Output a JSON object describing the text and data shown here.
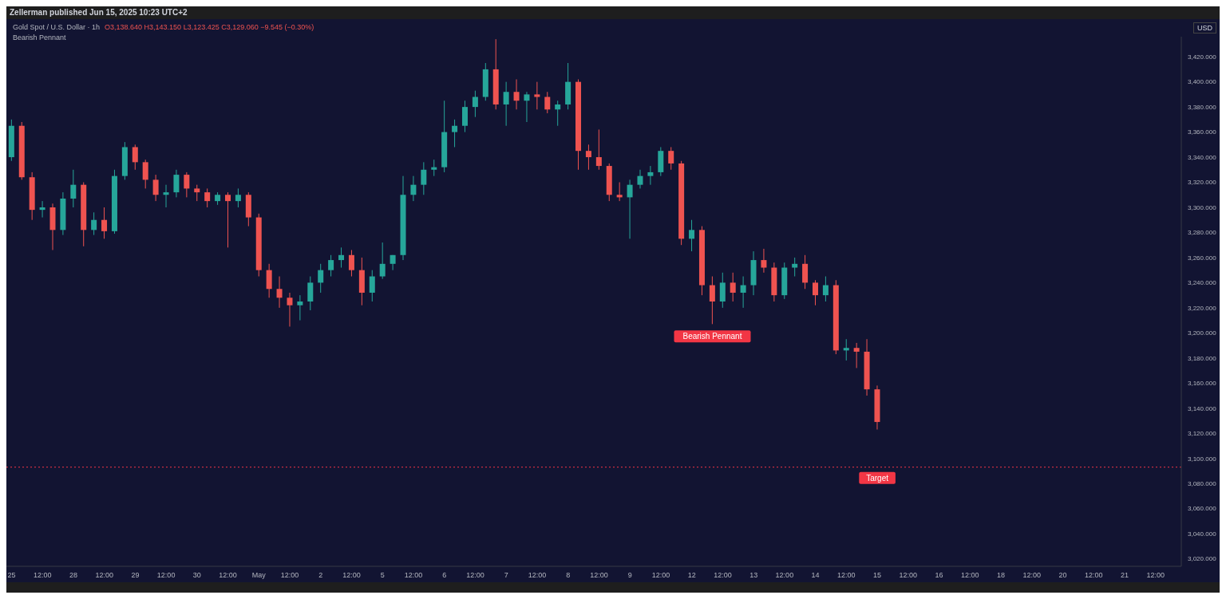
{
  "chart_data": {
    "type": "candlestick",
    "title": "Gold Spot / U.S. Dollar · 1h",
    "subtitle": "O3,138.640 H3,143.150 L3,123.425 C3,129.060 −9.545 (−0.30%)",
    "ylabel": "USD",
    "annotations": [
      "Zellerman published Jun 15, 2025 10:23 UTC+2",
      "Bearish Pennant",
      {
        "text": "Bearish Pennant",
        "y": 3207
      }
    ],
    "categories": [
      "25",
      null,
      null,
      "12:00",
      null,
      null,
      "28",
      null,
      null,
      "12:00",
      null,
      null,
      "29",
      null,
      null,
      "12:00",
      null,
      null,
      "30",
      null,
      null,
      "12:00",
      null,
      null,
      "May",
      null,
      null,
      "12:00",
      null,
      null,
      "2",
      null,
      null,
      "12:00",
      null,
      null,
      "5",
      null,
      null,
      "12:00",
      null,
      null,
      "6",
      null,
      null,
      "12:00",
      null,
      null,
      "7",
      null,
      null,
      "12:00",
      null,
      null,
      "8",
      null,
      null,
      "12:00",
      null,
      null,
      "9",
      null,
      null,
      "12:00",
      null,
      null,
      "12",
      null,
      null,
      "12:00",
      null,
      null,
      "13",
      null,
      null,
      "12:00",
      null,
      null,
      "14",
      null,
      null,
      "12:00",
      null,
      null,
      "15",
      null,
      null,
      "12:00",
      null,
      null,
      "16",
      null,
      null,
      "12:00",
      null,
      null,
      "18",
      null,
      null,
      "12:00",
      null,
      null,
      "20",
      null,
      null,
      "12:00",
      null,
      null,
      "21",
      null,
      null,
      "12:00",
      null,
      null
    ],
    "ohlc": [
      [
        3340,
        3370,
        3337,
        3365
      ],
      [
        3365,
        3368,
        3322,
        3324
      ],
      [
        3324,
        3328,
        3290,
        3298
      ],
      [
        3298,
        3305,
        3292,
        3300
      ],
      [
        3300,
        3303,
        3266,
        3282
      ],
      [
        3282,
        3312,
        3278,
        3307
      ],
      [
        3307,
        3330,
        3300,
        3318
      ],
      [
        3318,
        3320,
        3269,
        3282
      ],
      [
        3282,
        3296,
        3278,
        3290
      ],
      [
        3290,
        3300,
        3275,
        3281
      ],
      [
        3281,
        3330,
        3279,
        3325
      ],
      [
        3325,
        3352,
        3322,
        3348
      ],
      [
        3348,
        3350,
        3330,
        3336
      ],
      [
        3336,
        3338,
        3315,
        3322
      ],
      [
        3322,
        3326,
        3305,
        3310
      ],
      [
        3310,
        3318,
        3300,
        3312
      ],
      [
        3312,
        3330,
        3308,
        3326
      ],
      [
        3326,
        3328,
        3308,
        3315
      ],
      [
        3315,
        3318,
        3305,
        3312
      ],
      [
        3312,
        3315,
        3300,
        3305
      ],
      [
        3305,
        3312,
        3302,
        3310
      ],
      [
        3310,
        3312,
        3268,
        3305
      ],
      [
        3305,
        3315,
        3300,
        3310
      ],
      [
        3310,
        3312,
        3285,
        3292
      ],
      [
        3292,
        3295,
        3245,
        3250
      ],
      [
        3250,
        3255,
        3228,
        3235
      ],
      [
        3235,
        3245,
        3220,
        3228
      ],
      [
        3228,
        3232,
        3205,
        3222
      ],
      [
        3222,
        3230,
        3210,
        3225
      ],
      [
        3225,
        3245,
        3218,
        3240
      ],
      [
        3240,
        3255,
        3232,
        3250
      ],
      [
        3250,
        3262,
        3245,
        3258
      ],
      [
        3258,
        3268,
        3252,
        3262
      ],
      [
        3262,
        3266,
        3245,
        3250
      ],
      [
        3250,
        3260,
        3222,
        3232
      ],
      [
        3232,
        3250,
        3225,
        3245
      ],
      [
        3245,
        3272,
        3243,
        3255
      ],
      [
        3255,
        3262,
        3250,
        3262
      ],
      [
        3262,
        3325,
        3258,
        3310
      ],
      [
        3310,
        3325,
        3305,
        3318
      ],
      [
        3318,
        3336,
        3310,
        3330
      ],
      [
        3330,
        3338,
        3325,
        3332
      ],
      [
        3332,
        3385,
        3328,
        3360
      ],
      [
        3360,
        3370,
        3348,
        3365
      ],
      [
        3365,
        3385,
        3360,
        3380
      ],
      [
        3380,
        3393,
        3372,
        3388
      ],
      [
        3388,
        3415,
        3385,
        3410
      ],
      [
        3410,
        3434,
        3378,
        3382
      ],
      [
        3382,
        3400,
        3365,
        3392
      ],
      [
        3392,
        3402,
        3378,
        3385
      ],
      [
        3385,
        3392,
        3368,
        3390
      ],
      [
        3390,
        3400,
        3378,
        3388
      ],
      [
        3388,
        3392,
        3375,
        3378
      ],
      [
        3378,
        3385,
        3365,
        3382
      ],
      [
        3382,
        3415,
        3378,
        3400
      ],
      [
        3400,
        3402,
        3330,
        3345
      ],
      [
        3345,
        3350,
        3330,
        3340
      ],
      [
        3340,
        3362,
        3330,
        3333
      ],
      [
        3333,
        3335,
        3305,
        3310
      ],
      [
        3310,
        3320,
        3305,
        3308
      ],
      [
        3308,
        3322,
        3275,
        3318
      ],
      [
        3318,
        3330,
        3315,
        3325
      ],
      [
        3325,
        3333,
        3318,
        3328
      ],
      [
        3328,
        3348,
        3325,
        3345
      ],
      [
        3345,
        3348,
        3330,
        3335
      ],
      [
        3335,
        3337,
        3270,
        3275
      ],
      [
        3275,
        3290,
        3265,
        3282
      ],
      [
        3282,
        3285,
        3230,
        3238
      ],
      [
        3238,
        3245,
        3207,
        3225
      ],
      [
        3225,
        3248,
        3220,
        3240
      ],
      [
        3240,
        3248,
        3225,
        3232
      ],
      [
        3232,
        3245,
        3220,
        3238
      ],
      [
        3238,
        3265,
        3230,
        3258
      ],
      [
        3258,
        3267,
        3248,
        3252
      ],
      [
        3252,
        3256,
        3225,
        3230
      ],
      [
        3230,
        3256,
        3227,
        3252
      ],
      [
        3252,
        3260,
        3245,
        3255
      ],
      [
        3255,
        3262,
        3235,
        3240
      ],
      [
        3240,
        3242,
        3222,
        3230
      ],
      [
        3230,
        3245,
        3225,
        3238
      ],
      [
        3238,
        3242,
        3183,
        3186
      ],
      [
        3186,
        3195,
        3178,
        3188
      ],
      [
        3188,
        3192,
        3172,
        3185
      ],
      [
        3185,
        3195,
        3150,
        3155
      ],
      [
        3155,
        3158,
        3123,
        3129
      ],
      null,
      null,
      null,
      null,
      null,
      null,
      null,
      null,
      null,
      null,
      null,
      null,
      null,
      null,
      null,
      null,
      null,
      null,
      null,
      null,
      null,
      null,
      null,
      null,
      null,
      null,
      null,
      null,
      null
    ],
    "colors": [
      "#26a69a",
      "#ef5350",
      "#ef5350",
      "#26a69a",
      "#ef5350",
      "#26a69a",
      "#26a69a",
      "#ef5350",
      "#26a69a",
      "#ef5350",
      "#26a69a",
      "#26a69a",
      "#ef5350",
      "#ef5350",
      "#ef5350",
      "#26a69a",
      "#26a69a",
      "#ef5350",
      "#ef5350",
      "#ef5350",
      "#26a69a",
      "#ef5350",
      "#26a69a",
      "#ef5350",
      "#ef5350",
      "#ef5350",
      "#ef5350",
      "#ef5350",
      "#26a69a",
      "#26a69a",
      "#26a69a",
      "#26a69a",
      "#26a69a",
      "#ef5350",
      "#ef5350",
      "#26a69a",
      "#26a69a",
      "#26a69a",
      "#26a69a",
      "#26a69a",
      "#26a69a",
      "#26a69a",
      "#26a69a",
      "#26a69a",
      "#26a69a",
      "#26a69a",
      "#26a69a",
      "#ef5350",
      "#26a69a",
      "#ef5350",
      "#26a69a",
      "#ef5350",
      "#ef5350",
      "#26a69a",
      "#26a69a",
      "#ef5350",
      "#ef5350",
      "#ef5350",
      "#ef5350",
      "#ef5350",
      "#26a69a",
      "#26a69a",
      "#26a69a",
      "#26a69a",
      "#ef5350",
      "#ef5350",
      "#26a69a",
      "#ef5350",
      "#ef5350",
      "#26a69a",
      "#ef5350",
      "#26a69a",
      "#26a69a",
      "#ef5350",
      "#ef5350",
      "#26a69a",
      "#26a69a",
      "#ef5350",
      "#ef5350",
      "#26a69a",
      "#ef5350",
      "#26a69a",
      "#ef5350",
      "#ef5350",
      "#ef5350",
      null,
      null,
      null,
      null,
      null,
      null,
      null,
      null,
      null,
      null,
      null,
      null,
      null,
      null,
      null,
      null,
      null,
      null,
      null,
      null,
      null,
      null,
      null,
      null,
      null,
      null,
      null,
      null,
      null
    ],
    "ylim": [
      3014,
      3436
    ],
    "yticks": [
      {
        "value": 3020,
        "label": "3,020.000"
      },
      {
        "value": 3040,
        "label": "3,040.000"
      },
      {
        "value": 3060,
        "label": "3,060.000"
      },
      {
        "value": 3080,
        "label": "3,080.000"
      },
      {
        "value": 3100,
        "label": "3,100.000"
      },
      {
        "value": 3120,
        "label": "3,120.000"
      },
      {
        "value": 3140,
        "label": "3,140.000"
      },
      {
        "value": 3160,
        "label": "3,160.000"
      },
      {
        "value": 3180,
        "label": "3,180.000"
      },
      {
        "value": 3200,
        "label": "3,200.000"
      },
      {
        "value": 3220,
        "label": "3,220.000"
      },
      {
        "value": 3240,
        "label": "3,240.000"
      },
      {
        "value": 3260,
        "label": "3,260.000"
      },
      {
        "value": 3280,
        "label": "3,280.000"
      },
      {
        "value": 3300,
        "label": "3,300.000"
      },
      {
        "value": 3320,
        "label": "3,320.000"
      },
      {
        "value": 3340,
        "label": "3,340.000"
      },
      {
        "value": 3360,
        "label": "3,360.000"
      },
      {
        "value": 3380,
        "label": "3,380.000"
      },
      {
        "value": 3400,
        "label": "3,400.000"
      },
      {
        "value": 3420,
        "label": "3,420.000"
      }
    ],
    "ref_lines": [
      {
        "axis": "y",
        "value": 3093,
        "label": "Target",
        "color": "#f23645",
        "line_style": "dotted"
      }
    ]
  }
}
